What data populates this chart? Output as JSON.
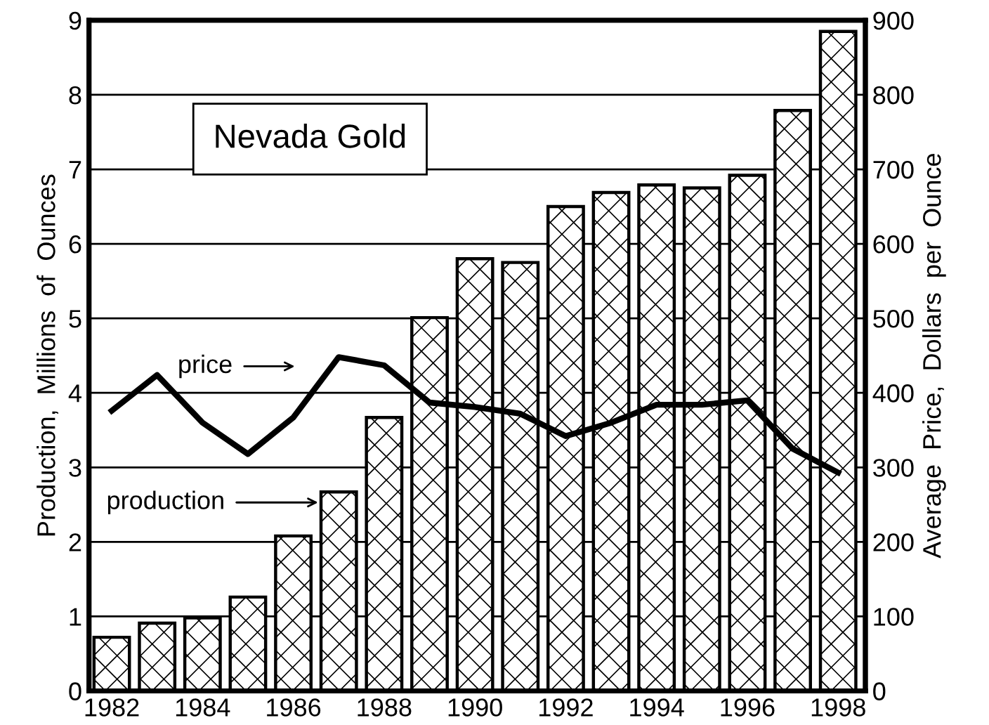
{
  "chart_data": {
    "type": "bar",
    "title": "Nevada Gold",
    "ylabel": "Production,  Millions  of  Ounces",
    "y2label": "Average  Price,  Dollars  per  Ounce",
    "x": [
      1982,
      1983,
      1984,
      1985,
      1986,
      1987,
      1988,
      1989,
      1990,
      1991,
      1992,
      1993,
      1994,
      1995,
      1996,
      1997,
      1998
    ],
    "series": [
      {
        "color": "#000000",
        "values": [
          0.72,
          0.91,
          0.98,
          1.26,
          2.08,
          2.67,
          3.67,
          5.01,
          5.8,
          5.75,
          6.5,
          6.69,
          6.79,
          6.75,
          6.92,
          7.79,
          8.85
        ]
      },
      {
        "type": "line",
        "axis": "y2",
        "color": "#000000",
        "values": [
          376,
          424,
          360,
          318,
          367,
          448,
          437,
          387,
          381,
          372,
          342,
          360,
          384,
          384,
          390,
          325,
          293
        ]
      }
    ],
    "xlim": [
      1981.5,
      1998.6
    ],
    "xticks": [
      1982,
      1984,
      1986,
      1988,
      1990,
      1992,
      1994,
      1996,
      1998
    ],
    "ylim": [
      0,
      9
    ],
    "yticks": [
      0,
      1,
      2,
      3,
      4,
      5,
      6,
      7,
      8,
      9
    ],
    "y2lim": [
      0,
      900
    ],
    "y2ticks": [
      0,
      100,
      200,
      300,
      400,
      500,
      600,
      700,
      800,
      900
    ],
    "annotations": [
      "price",
      "production"
    ],
    "grid": "y",
    "legend": false
  }
}
